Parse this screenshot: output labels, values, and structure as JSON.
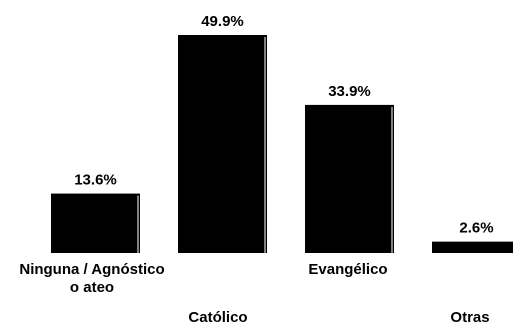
{
  "chart_data": {
    "type": "bar",
    "categories": [
      "Ninguna / Agnóstico o ateo",
      "Católico",
      "Evangélico",
      "Otras"
    ],
    "category_lines": [
      [
        "Ninguna / Agnóstico",
        "o ateo"
      ],
      [
        "Católico"
      ],
      [
        "Evangélico"
      ],
      [
        "Otras"
      ]
    ],
    "values": [
      13.6,
      49.9,
      33.9,
      2.6
    ],
    "value_labels": [
      "13.6%",
      "49.9%",
      "33.9%",
      "2.6%"
    ],
    "ylim": [
      0,
      50
    ],
    "grid": false,
    "legend": "none",
    "colors": {
      "bar_fill": "#000000",
      "bar_highlight": "#ffffff",
      "text": "#000000",
      "background": "#ffffff"
    }
  }
}
